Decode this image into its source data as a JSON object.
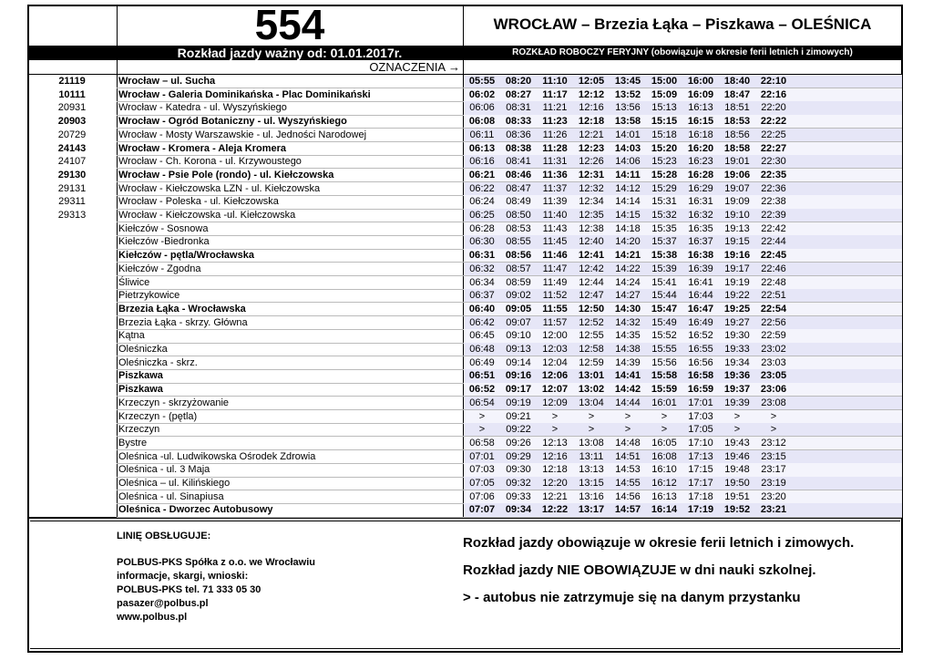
{
  "header": {
    "line": "554",
    "route": "WROCŁAW – Brzezia Łąka – Piszkawa – OLEŚNICA",
    "valid_from": "Rozkład jazdy ważny od: 01.01.2017r.",
    "schedule_note": "ROZKŁAD ROBOCZY FERYJNY (obowiązuje w okresie ferii letnich i zimowych)",
    "legend": "OZNACZENIA →"
  },
  "stops": [
    {
      "code": "21119",
      "name": "Wrocław – ul. Sucha",
      "bold": true,
      "times": [
        "05:55",
        "08:20",
        "11:10",
        "12:05",
        "13:45",
        "15:00",
        "16:00",
        "18:40",
        "22:10"
      ]
    },
    {
      "code": "10111",
      "name": "Wrocław - Galeria Dominikańska - Plac Dominikański",
      "bold": true,
      "times": [
        "06:02",
        "08:27",
        "11:17",
        "12:12",
        "13:52",
        "15:09",
        "16:09",
        "18:47",
        "22:16"
      ]
    },
    {
      "code": "20931",
      "name": "Wrocław - Katedra - ul. Wyszyńskiego",
      "bold": false,
      "times": [
        "06:06",
        "08:31",
        "11:21",
        "12:16",
        "13:56",
        "15:13",
        "16:13",
        "18:51",
        "22:20"
      ]
    },
    {
      "code": "20903",
      "name": "Wrocław - Ogród Botaniczny - ul. Wyszyńskiego",
      "bold": true,
      "times": [
        "06:08",
        "08:33",
        "11:23",
        "12:18",
        "13:58",
        "15:15",
        "16:15",
        "18:53",
        "22:22"
      ]
    },
    {
      "code": "20729",
      "name": "Wrocław - Mosty Warszawskie - ul. Jedności Narodowej",
      "bold": false,
      "times": [
        "06:11",
        "08:36",
        "11:26",
        "12:21",
        "14:01",
        "15:18",
        "16:18",
        "18:56",
        "22:25"
      ]
    },
    {
      "code": "24143",
      "name": "Wrocław - Kromera - Aleja Kromera",
      "bold": true,
      "times": [
        "06:13",
        "08:38",
        "11:28",
        "12:23",
        "14:03",
        "15:20",
        "16:20",
        "18:58",
        "22:27"
      ]
    },
    {
      "code": "24107",
      "name": "Wrocław - Ch. Korona - ul. Krzywoustego",
      "bold": false,
      "times": [
        "06:16",
        "08:41",
        "11:31",
        "12:26",
        "14:06",
        "15:23",
        "16:23",
        "19:01",
        "22:30"
      ]
    },
    {
      "code": "29130",
      "name": "Wrocław - Psie Pole (rondo) - ul. Kiełczowska",
      "bold": true,
      "times": [
        "06:21",
        "08:46",
        "11:36",
        "12:31",
        "14:11",
        "15:28",
        "16:28",
        "19:06",
        "22:35"
      ]
    },
    {
      "code": "29131",
      "name": "Wrocław - Kiełczowska LZN - ul. Kiełczowska",
      "bold": false,
      "times": [
        "06:22",
        "08:47",
        "11:37",
        "12:32",
        "14:12",
        "15:29",
        "16:29",
        "19:07",
        "22:36"
      ]
    },
    {
      "code": "29311",
      "name": "Wrocław - Poleska - ul. Kiełczowska",
      "bold": false,
      "times": [
        "06:24",
        "08:49",
        "11:39",
        "12:34",
        "14:14",
        "15:31",
        "16:31",
        "19:09",
        "22:38"
      ]
    },
    {
      "code": "29313",
      "name": "Wrocław - Kiełczowska -ul. Kiełczowska",
      "bold": false,
      "times": [
        "06:25",
        "08:50",
        "11:40",
        "12:35",
        "14:15",
        "15:32",
        "16:32",
        "19:10",
        "22:39"
      ]
    },
    {
      "code": null,
      "name": "Kiełczów - Sosnowa",
      "bold": false,
      "times": [
        "06:28",
        "08:53",
        "11:43",
        "12:38",
        "14:18",
        "15:35",
        "16:35",
        "19:13",
        "22:42"
      ]
    },
    {
      "code": null,
      "name": "Kiełczów -Biedronka",
      "bold": false,
      "times": [
        "06:30",
        "08:55",
        "11:45",
        "12:40",
        "14:20",
        "15:37",
        "16:37",
        "19:15",
        "22:44"
      ]
    },
    {
      "code": null,
      "name": "Kiełczów - pętla/Wrocławska",
      "bold": true,
      "times": [
        "06:31",
        "08:56",
        "11:46",
        "12:41",
        "14:21",
        "15:38",
        "16:38",
        "19:16",
        "22:45"
      ]
    },
    {
      "code": null,
      "name": "Kiełczów - Zgodna",
      "bold": false,
      "times": [
        "06:32",
        "08:57",
        "11:47",
        "12:42",
        "14:22",
        "15:39",
        "16:39",
        "19:17",
        "22:46"
      ]
    },
    {
      "code": null,
      "name": "Śliwice",
      "bold": false,
      "times": [
        "06:34",
        "08:59",
        "11:49",
        "12:44",
        "14:24",
        "15:41",
        "16:41",
        "19:19",
        "22:48"
      ]
    },
    {
      "code": null,
      "name": "Pietrzykowice",
      "bold": false,
      "times": [
        "06:37",
        "09:02",
        "11:52",
        "12:47",
        "14:27",
        "15:44",
        "16:44",
        "19:22",
        "22:51"
      ]
    },
    {
      "code": null,
      "name": "Brzezia Łąka - Wrocławska",
      "bold": true,
      "times": [
        "06:40",
        "09:05",
        "11:55",
        "12:50",
        "14:30",
        "15:47",
        "16:47",
        "19:25",
        "22:54"
      ]
    },
    {
      "code": null,
      "name": "Brzezia Łąka - skrzy. Główna",
      "bold": false,
      "times": [
        "06:42",
        "09:07",
        "11:57",
        "12:52",
        "14:32",
        "15:49",
        "16:49",
        "19:27",
        "22:56"
      ]
    },
    {
      "code": null,
      "name": "Kątna",
      "bold": false,
      "times": [
        "06:45",
        "09:10",
        "12:00",
        "12:55",
        "14:35",
        "15:52",
        "16:52",
        "19:30",
        "22:59"
      ]
    },
    {
      "code": null,
      "name": "Oleśniczka",
      "bold": false,
      "times": [
        "06:48",
        "09:13",
        "12:03",
        "12:58",
        "14:38",
        "15:55",
        "16:55",
        "19:33",
        "23:02"
      ]
    },
    {
      "code": null,
      "name": "Oleśniczka - skrz.",
      "bold": false,
      "times": [
        "06:49",
        "09:14",
        "12:04",
        "12:59",
        "14:39",
        "15:56",
        "16:56",
        "19:34",
        "23:03"
      ]
    },
    {
      "code": null,
      "name": "Piszkawa",
      "bold": true,
      "times": [
        "06:51",
        "09:16",
        "12:06",
        "13:01",
        "14:41",
        "15:58",
        "16:58",
        "19:36",
        "23:05"
      ]
    },
    {
      "code": null,
      "name": "Piszkawa",
      "bold": true,
      "times": [
        "06:52",
        "09:17",
        "12:07",
        "13:02",
        "14:42",
        "15:59",
        "16:59",
        "19:37",
        "23:06"
      ]
    },
    {
      "code": null,
      "name": "Krzeczyn - skrzyżowanie",
      "bold": false,
      "times": [
        "06:54",
        "09:19",
        "12:09",
        "13:04",
        "14:44",
        "16:01",
        "17:01",
        "19:39",
        "23:08"
      ]
    },
    {
      "code": null,
      "name": "Krzeczyn - (pętla)",
      "bold": false,
      "times": [
        ">",
        "09:21",
        ">",
        ">",
        ">",
        ">",
        "17:03",
        ">",
        ">"
      ]
    },
    {
      "code": null,
      "name": "Krzeczyn",
      "bold": false,
      "times": [
        ">",
        "09:22",
        ">",
        ">",
        ">",
        ">",
        "17:05",
        ">",
        ">"
      ]
    },
    {
      "code": null,
      "name": "Bystre",
      "bold": false,
      "times": [
        "06:58",
        "09:26",
        "12:13",
        "13:08",
        "14:48",
        "16:05",
        "17:10",
        "19:43",
        "23:12"
      ]
    },
    {
      "code": null,
      "name": "Oleśnica -ul. Ludwikowska Ośrodek Zdrowia",
      "bold": false,
      "times": [
        "07:01",
        "09:29",
        "12:16",
        "13:11",
        "14:51",
        "16:08",
        "17:13",
        "19:46",
        "23:15"
      ]
    },
    {
      "code": null,
      "name": "Oleśnica - ul. 3 Maja",
      "bold": false,
      "times": [
        "07:03",
        "09:30",
        "12:18",
        "13:13",
        "14:53",
        "16:10",
        "17:15",
        "19:48",
        "23:17"
      ]
    },
    {
      "code": null,
      "name": "Oleśnica – ul. Kilińskiego",
      "bold": false,
      "times": [
        "07:05",
        "09:32",
        "12:20",
        "13:15",
        "14:55",
        "16:12",
        "17:17",
        "19:50",
        "23:19"
      ]
    },
    {
      "code": null,
      "name": "Oleśnica - ul. Sinapiusa",
      "bold": false,
      "times": [
        "07:06",
        "09:33",
        "12:21",
        "13:16",
        "14:56",
        "16:13",
        "17:18",
        "19:51",
        "23:20"
      ]
    },
    {
      "code": null,
      "name": "Oleśnica - Dworzec Autobusowy",
      "bold": true,
      "times": [
        "07:07",
        "09:34",
        "12:22",
        "13:17",
        "14:57",
        "16:14",
        "17:19",
        "19:52",
        "23:21"
      ]
    }
  ],
  "footer": {
    "operator": [
      "LINIĘ OBSŁUGUJE:",
      "POLBUS-PKS Spółka z o.o. we Wrocławiu",
      "informacje, skargi, wnioski:",
      "POLBUS-PKS tel. 71 333 05 30",
      "pasazer@polbus.pl",
      "www.polbus.pl"
    ],
    "notes": [
      "Rozkład jazdy obowiązuje w okresie ferii letnich i zimowych.",
      "Rozkład jazdy NIE OBOWIĄZUJE w dni nauki szkolnej.",
      "> - autobus nie zatrzymuje się na danym przystanku"
    ]
  }
}
